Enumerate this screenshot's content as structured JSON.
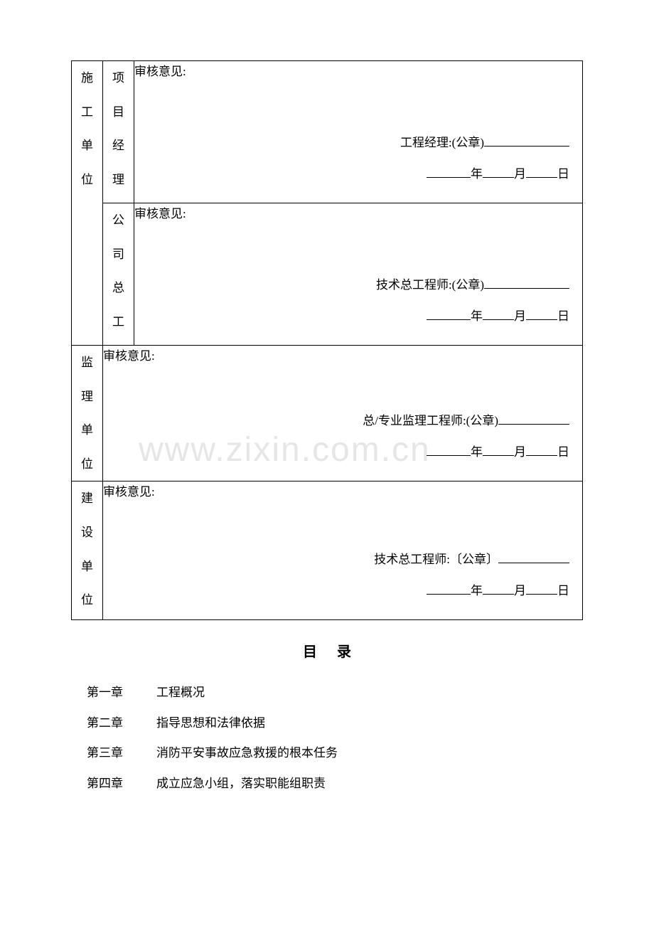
{
  "watermark": "www.zixin.com.cn",
  "table": {
    "construction_unit": {
      "label": "施工单位",
      "project_manager": {
        "label": "项目经理",
        "opinion_label": "审核意见:",
        "signature_role": "工程经理:(公章)",
        "year": "年",
        "month": "月",
        "day": "日"
      },
      "company_chief": {
        "label": "公司总工",
        "opinion_label": "审核意见:",
        "signature_role": "技术总工程师:(公章)",
        "year": "年",
        "month": "月",
        "day": "日"
      }
    },
    "supervision_unit": {
      "label": "监理单位",
      "opinion_label": "审核意见:",
      "signature_role": "总/专业监理工程师:(公章)",
      "year": "年",
      "month": "月",
      "day": "日"
    },
    "construction_owner": {
      "label": "建设单位",
      "opinion_label": "审核意见:",
      "signature_role": "技术总工程师:〔公章〕",
      "year": "年",
      "month": "月",
      "day": "日"
    }
  },
  "toc": {
    "title": "目录",
    "items": [
      {
        "chapter": "第一章",
        "name": "工程概况"
      },
      {
        "chapter": "第二章",
        "name": "指导思想和法律依据"
      },
      {
        "chapter": "第三章",
        "name": "消防平安事故应急救援的根本任务"
      },
      {
        "chapter": "第四章",
        "name": "成立应急小组，落实职能组职责"
      }
    ]
  },
  "colors": {
    "text": "#000000",
    "background": "#ffffff",
    "watermark": "#e6e6e6",
    "border": "#000000"
  },
  "typography": {
    "body_font": "SimSun",
    "body_size_pt": 12,
    "title_size_pt": 14,
    "title_weight": "bold"
  }
}
